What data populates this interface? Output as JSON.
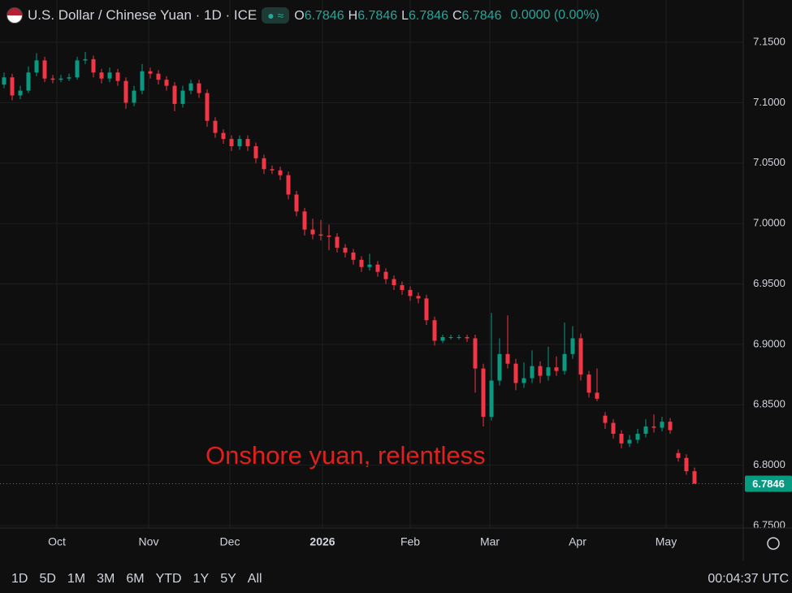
{
  "header": {
    "title": "U.S. Dollar / Chinese Yuan · 1D · ICE",
    "ohlc": [
      {
        "label": "O",
        "value": "6.7846"
      },
      {
        "label": "H",
        "value": "6.7846"
      },
      {
        "label": "L",
        "value": "6.7846"
      },
      {
        "label": "C",
        "value": "6.7846"
      }
    ],
    "change": "0.0000 (0.00%)"
  },
  "chart_data": {
    "type": "candlestick",
    "annotation": "Onshore yuan, relentless",
    "up_color": "#089981",
    "down_color": "#f23645",
    "grid": true,
    "x": [
      0,
      1,
      2,
      3,
      4,
      5,
      6,
      7,
      8,
      9,
      10,
      11,
      12,
      13,
      14,
      15,
      16,
      17,
      18,
      19,
      20,
      21,
      22,
      23,
      24,
      25,
      26,
      27,
      28,
      29,
      30,
      31,
      32,
      33,
      34,
      35,
      36,
      37,
      38,
      39,
      40,
      41,
      42,
      43,
      44,
      45,
      46,
      47,
      48,
      49,
      50,
      51,
      52,
      53,
      54,
      55,
      56,
      57,
      58,
      59,
      60,
      61,
      62,
      63,
      64,
      65,
      66,
      67,
      68,
      69,
      70,
      71,
      72,
      73,
      74,
      75,
      76,
      77,
      78,
      79,
      80,
      81,
      82,
      83,
      84,
      85
    ],
    "open": [
      7.115,
      7.121,
      7.106,
      7.11,
      7.125,
      7.135,
      7.12,
      7.119,
      7.12,
      7.121,
      7.135,
      7.136,
      7.125,
      7.12,
      7.125,
      7.118,
      7.1,
      7.11,
      7.126,
      7.124,
      7.119,
      7.114,
      7.099,
      7.11,
      7.116,
      7.108,
      7.085,
      7.075,
      7.07,
      7.064,
      7.07,
      7.064,
      7.054,
      7.045,
      7.044,
      7.04,
      7.024,
      7.01,
      6.995,
      6.991,
      6.99,
      6.989,
      6.98,
      6.976,
      6.97,
      6.964,
      6.966,
      6.96,
      6.954,
      6.949,
      6.945,
      6.94,
      6.938,
      6.92,
      6.903,
      6.906,
      6.906,
      6.906,
      6.905,
      6.88,
      6.84,
      6.87,
      6.892,
      6.884,
      6.868,
      6.872,
      6.882,
      6.874,
      6.881,
      6.878,
      6.892,
      6.905,
      6.875,
      6.86,
      6.841,
      6.835,
      6.826,
      6.818,
      6.821,
      6.826,
      6.832,
      6.831,
      6.836,
      6.81,
      6.806,
      6.795
    ],
    "high": [
      7.125,
      7.124,
      7.114,
      7.13,
      7.141,
      7.138,
      7.123,
      7.123,
      7.124,
      7.138,
      7.142,
      7.139,
      7.128,
      7.129,
      7.128,
      7.121,
      7.114,
      7.132,
      7.129,
      7.127,
      7.122,
      7.117,
      7.114,
      7.119,
      7.119,
      7.111,
      7.088,
      7.078,
      7.073,
      7.073,
      7.073,
      7.067,
      7.057,
      7.048,
      7.047,
      7.043,
      7.027,
      7.013,
      7.004,
      7.003,
      6.999,
      6.992,
      6.983,
      6.979,
      6.973,
      6.975,
      6.969,
      6.963,
      6.957,
      6.952,
      6.948,
      6.943,
      6.941,
      6.923,
      6.908,
      6.908,
      6.908,
      6.908,
      6.908,
      6.884,
      6.926,
      6.905,
      6.924,
      6.888,
      6.885,
      6.895,
      6.886,
      6.898,
      6.89,
      6.918,
      6.915,
      6.909,
      6.878,
      6.88,
      6.844,
      6.838,
      6.829,
      6.825,
      6.83,
      6.838,
      6.842,
      6.84,
      6.839,
      6.813,
      6.809,
      6.798
    ],
    "low": [
      7.112,
      7.102,
      7.103,
      7.108,
      7.122,
      7.117,
      7.116,
      7.117,
      7.118,
      7.119,
      7.132,
      7.121,
      7.116,
      7.117,
      7.114,
      7.095,
      7.097,
      7.107,
      7.12,
      7.115,
      7.11,
      7.093,
      7.096,
      7.107,
      7.104,
      7.08,
      7.071,
      7.066,
      7.06,
      7.061,
      7.06,
      7.05,
      7.041,
      7.041,
      7.036,
      7.02,
      7.006,
      6.99,
      6.987,
      6.986,
      6.978,
      6.976,
      6.972,
      6.966,
      6.96,
      6.961,
      6.956,
      6.95,
      6.945,
      6.941,
      6.936,
      6.934,
      6.916,
      6.899,
      6.901,
      6.904,
      6.904,
      6.902,
      6.86,
      6.832,
      6.837,
      6.866,
      6.88,
      6.862,
      6.864,
      6.868,
      6.868,
      6.87,
      6.874,
      6.875,
      6.888,
      6.87,
      6.856,
      6.853,
      6.83,
      6.822,
      6.814,
      6.815,
      6.818,
      6.823,
      6.827,
      6.828,
      6.826,
      6.803,
      6.792,
      6.7846
    ],
    "close": [
      7.121,
      7.106,
      7.11,
      7.125,
      7.135,
      7.12,
      7.119,
      7.12,
      7.121,
      7.135,
      7.136,
      7.125,
      7.12,
      7.125,
      7.118,
      7.1,
      7.11,
      7.126,
      7.124,
      7.119,
      7.114,
      7.099,
      7.11,
      7.116,
      7.108,
      7.085,
      7.075,
      7.07,
      7.064,
      7.07,
      7.064,
      7.054,
      7.045,
      7.044,
      7.04,
      7.024,
      7.01,
      6.995,
      6.991,
      6.99,
      6.989,
      6.98,
      6.976,
      6.97,
      6.964,
      6.966,
      6.96,
      6.954,
      6.949,
      6.945,
      6.94,
      6.938,
      6.92,
      6.903,
      6.906,
      6.906,
      6.906,
      6.905,
      6.88,
      6.84,
      6.87,
      6.892,
      6.884,
      6.868,
      6.872,
      6.882,
      6.874,
      6.881,
      6.878,
      6.892,
      6.905,
      6.875,
      6.86,
      6.855,
      6.835,
      6.826,
      6.818,
      6.821,
      6.826,
      6.832,
      6.831,
      6.836,
      6.829,
      6.806,
      6.795,
      6.7846
    ],
    "xlim": [
      -0.5,
      91
    ],
    "xticks": [
      {
        "value": 6.5,
        "label": "Oct"
      },
      {
        "value": 17.8,
        "label": "Nov"
      },
      {
        "value": 27.8,
        "label": "Dec"
      },
      {
        "value": 39.2,
        "label": "2026"
      },
      {
        "value": 50,
        "label": "Feb"
      },
      {
        "value": 59.8,
        "label": "Mar"
      },
      {
        "value": 70.6,
        "label": "Apr"
      },
      {
        "value": 81.5,
        "label": "May"
      }
    ],
    "ylim": [
      6.748,
      7.185
    ],
    "yticks": [
      {
        "value": 6.75,
        "label": "6.7500"
      },
      {
        "value": 6.8,
        "label": "6.8000"
      },
      {
        "value": 6.85,
        "label": "6.8500"
      },
      {
        "value": 6.9,
        "label": "6.9000"
      },
      {
        "value": 6.95,
        "label": "6.9500"
      },
      {
        "value": 7.0,
        "label": "7.0000"
      },
      {
        "value": 7.05,
        "label": "7.0500"
      },
      {
        "value": 7.1,
        "label": "7.1000"
      },
      {
        "value": 7.15,
        "label": "7.1500"
      }
    ]
  },
  "footer": {
    "ranges": [
      "1D",
      "5D",
      "1M",
      "3M",
      "6M",
      "YTD",
      "1Y",
      "5Y",
      "All"
    ],
    "time": "00:04:37 UTC"
  }
}
